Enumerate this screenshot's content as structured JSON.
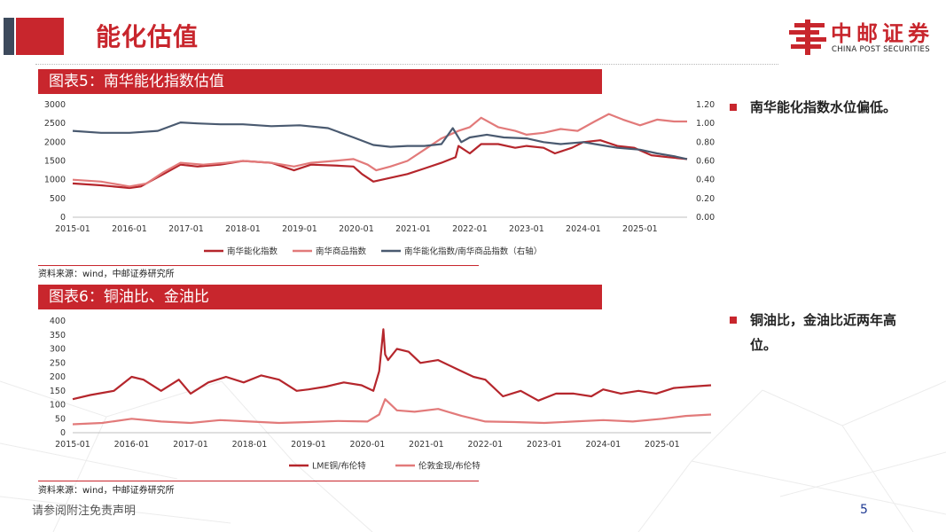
{
  "page": {
    "title": "能化估值",
    "page_number": "5",
    "footer_note": "请参阅附注免责声明"
  },
  "logo": {
    "name": "中邮证券",
    "subtitle": "CHINA POST SECURITIES"
  },
  "figure5": {
    "banner": "图表5：南华能化指数估值",
    "source": "资料来源：wind，中邮证券研究所"
  },
  "figure6": {
    "banner": "图表6：铜油比、金油比",
    "source": "资料来源：wind，中邮证券研究所"
  },
  "bullets": [
    {
      "text_lines": [
        "南华能化指数水位偏低。"
      ]
    },
    {
      "text_lines": [
        "铜油比，金油比近两年高",
        "位。"
      ]
    }
  ],
  "colors": {
    "brand_red": "#c8262d",
    "series_dark_red": "#b5262c",
    "series_light_red": "#e27a7a",
    "series_slate": "#4a5a70"
  },
  "chart_data": [
    {
      "type": "line",
      "x_ticks": [
        "2015-01",
        "2016-01",
        "2017-01",
        "2018-01",
        "2019-01",
        "2020-01",
        "2021-01",
        "2022-01",
        "2023-01",
        "2024-01",
        "2025-01"
      ],
      "x_range": [
        2015.0,
        2025.83
      ],
      "ylim": [
        0,
        3000
      ],
      "y_ticks": [
        "0",
        "500",
        "1000",
        "1500",
        "2000",
        "2500",
        "3000"
      ],
      "y2lim": [
        0,
        1.2
      ],
      "y2_ticks": [
        "0.00",
        "0.20",
        "0.40",
        "0.60",
        "0.80",
        "1.00",
        "1.20"
      ],
      "grid": false,
      "legend_position": "bottom",
      "series": [
        {
          "name": "南华能化指数",
          "axis": "left",
          "color": "#b5262c",
          "x": [
            2015.0,
            2015.5,
            2016.0,
            2016.2,
            2016.6,
            2016.9,
            2017.2,
            2017.6,
            2018.0,
            2018.5,
            2018.9,
            2019.2,
            2019.6,
            2019.95,
            2020.1,
            2020.3,
            2020.6,
            2020.9,
            2021.2,
            2021.5,
            2021.75,
            2021.8,
            2022.0,
            2022.2,
            2022.5,
            2022.8,
            2023.0,
            2023.3,
            2023.5,
            2023.8,
            2024.0,
            2024.3,
            2024.6,
            2024.9,
            2025.2,
            2025.5,
            2025.83
          ],
          "values": [
            900,
            850,
            780,
            820,
            1150,
            1400,
            1350,
            1400,
            1500,
            1450,
            1250,
            1400,
            1380,
            1350,
            1150,
            950,
            1050,
            1150,
            1300,
            1450,
            1600,
            1900,
            1700,
            1950,
            1950,
            1850,
            1900,
            1850,
            1700,
            1850,
            2000,
            2050,
            1900,
            1850,
            1650,
            1600,
            1550
          ]
        },
        {
          "name": "南华商品指数",
          "axis": "left",
          "color": "#e27a7a",
          "x": [
            2015.0,
            2015.5,
            2016.0,
            2016.3,
            2016.6,
            2016.9,
            2017.3,
            2017.7,
            2018.0,
            2018.5,
            2018.9,
            2019.2,
            2019.6,
            2019.95,
            2020.2,
            2020.35,
            2020.6,
            2020.9,
            2021.2,
            2021.5,
            2021.8,
            2022.0,
            2022.2,
            2022.5,
            2022.8,
            2023.0,
            2023.3,
            2023.6,
            2023.9,
            2024.2,
            2024.45,
            2024.7,
            2025.0,
            2025.3,
            2025.6,
            2025.83
          ],
          "values": [
            1000,
            950,
            820,
            900,
            1200,
            1450,
            1400,
            1450,
            1500,
            1450,
            1350,
            1450,
            1500,
            1550,
            1400,
            1250,
            1350,
            1500,
            1800,
            2100,
            2300,
            2400,
            2650,
            2400,
            2300,
            2200,
            2250,
            2350,
            2300,
            2550,
            2750,
            2600,
            2450,
            2600,
            2550,
            2550
          ]
        },
        {
          "name": "南华能化指数/南华商品指数（右轴）",
          "axis": "right",
          "color": "#4a5a70",
          "x": [
            2015.0,
            2015.5,
            2016.0,
            2016.5,
            2016.9,
            2017.2,
            2017.6,
            2018.0,
            2018.5,
            2019.0,
            2019.5,
            2019.95,
            2020.3,
            2020.6,
            2020.9,
            2021.2,
            2021.5,
            2021.7,
            2021.85,
            2022.0,
            2022.3,
            2022.6,
            2023.0,
            2023.3,
            2023.6,
            2024.0,
            2024.3,
            2024.6,
            2025.0,
            2025.3,
            2025.6,
            2025.83
          ],
          "values": [
            0.92,
            0.9,
            0.9,
            0.92,
            1.01,
            1.0,
            0.99,
            0.99,
            0.97,
            0.98,
            0.95,
            0.85,
            0.77,
            0.75,
            0.76,
            0.76,
            0.78,
            0.95,
            0.8,
            0.85,
            0.88,
            0.85,
            0.84,
            0.8,
            0.78,
            0.8,
            0.77,
            0.74,
            0.72,
            0.68,
            0.65,
            0.62
          ]
        }
      ]
    },
    {
      "type": "line",
      "x_ticks": [
        "2015-01",
        "2016-01",
        "2017-01",
        "2018-01",
        "2019-01",
        "2020-01",
        "2021-01",
        "2022-01",
        "2023-01",
        "2024-01",
        "2025-01"
      ],
      "x_range": [
        2015.0,
        2025.83
      ],
      "ylim": [
        0,
        400
      ],
      "y_ticks": [
        "0",
        "50",
        "100",
        "150",
        "200",
        "250",
        "300",
        "350",
        "400"
      ],
      "grid": false,
      "legend_position": "bottom",
      "series": [
        {
          "name": "LME铜/布伦特",
          "color": "#b5262c",
          "x": [
            2015.0,
            2015.3,
            2015.7,
            2016.0,
            2016.2,
            2016.5,
            2016.8,
            2017.0,
            2017.3,
            2017.6,
            2017.9,
            2018.2,
            2018.5,
            2018.8,
            2019.0,
            2019.3,
            2019.6,
            2019.9,
            2020.1,
            2020.2,
            2020.27,
            2020.3,
            2020.35,
            2020.5,
            2020.7,
            2020.9,
            2021.2,
            2021.5,
            2021.8,
            2022.0,
            2022.3,
            2022.6,
            2022.9,
            2023.2,
            2023.5,
            2023.8,
            2024.0,
            2024.3,
            2024.6,
            2024.9,
            2025.2,
            2025.5,
            2025.83
          ],
          "values": [
            120,
            135,
            150,
            200,
            190,
            150,
            190,
            140,
            180,
            200,
            180,
            205,
            190,
            150,
            155,
            165,
            180,
            170,
            150,
            220,
            370,
            280,
            260,
            300,
            290,
            250,
            260,
            230,
            200,
            190,
            130,
            150,
            115,
            140,
            140,
            130,
            155,
            140,
            150,
            140,
            160,
            165,
            170
          ]
        },
        {
          "name": "伦敦金现/布伦特",
          "color": "#e27a7a",
          "x": [
            2015.0,
            2015.5,
            2016.0,
            2016.5,
            2017.0,
            2017.5,
            2018.0,
            2018.5,
            2019.0,
            2019.5,
            2020.0,
            2020.2,
            2020.3,
            2020.5,
            2020.8,
            2021.2,
            2021.6,
            2022.0,
            2022.5,
            2023.0,
            2023.5,
            2024.0,
            2024.5,
            2025.0,
            2025.4,
            2025.83
          ],
          "values": [
            30,
            35,
            50,
            40,
            35,
            45,
            40,
            35,
            38,
            42,
            40,
            65,
            120,
            80,
            75,
            85,
            60,
            40,
            38,
            35,
            40,
            45,
            40,
            50,
            60,
            65
          ]
        }
      ]
    }
  ]
}
